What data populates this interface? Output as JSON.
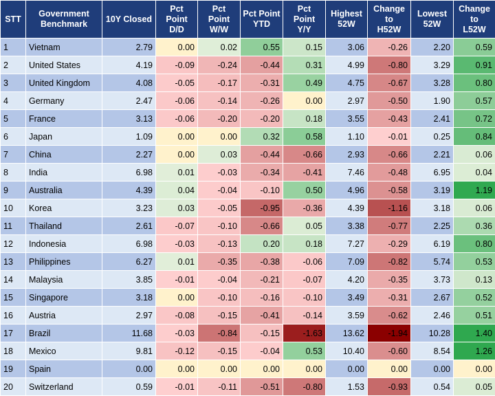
{
  "headers": {
    "stt": "STT",
    "benchmark": "Government\nBenchmark",
    "closed": "10Y Closed",
    "dd": "Pct\nPoint\nD/D",
    "ww": "Pct\nPoint\nW/W",
    "ytd": "Pct Point\nYTD",
    "yy": "Pct\nPoint\nY/Y",
    "high": "Highest\n52W",
    "ch_high": "Change\nto\nH52W",
    "low": "Lowest\n52W",
    "ch_low": "Change\nto\nL52W"
  },
  "rows": [
    {
      "stt": "1",
      "name": "Vietnam",
      "closed": "2.79",
      "dd": "0.00",
      "ww": "0.02",
      "ytd": "0.55",
      "yy": "0.15",
      "high": "3.06",
      "ch_high": "-0.26",
      "low": "2.20",
      "ch_low": "0.59"
    },
    {
      "stt": "2",
      "name": "United States",
      "closed": "4.19",
      "dd": "-0.09",
      "ww": "-0.24",
      "ytd": "-0.44",
      "yy": "0.31",
      "high": "4.99",
      "ch_high": "-0.80",
      "low": "3.29",
      "ch_low": "0.91"
    },
    {
      "stt": "3",
      "name": "United Kingdom",
      "closed": "4.08",
      "dd": "-0.05",
      "ww": "-0.17",
      "ytd": "-0.31",
      "yy": "0.49",
      "high": "4.75",
      "ch_high": "-0.67",
      "low": "3.28",
      "ch_low": "0.80"
    },
    {
      "stt": "4",
      "name": "Germany",
      "closed": "2.47",
      "dd": "-0.06",
      "ww": "-0.14",
      "ytd": "-0.26",
      "yy": "0.00",
      "high": "2.97",
      "ch_high": "-0.50",
      "low": "1.90",
      "ch_low": "0.57"
    },
    {
      "stt": "5",
      "name": "France",
      "closed": "3.13",
      "dd": "-0.06",
      "ww": "-0.20",
      "ytd": "-0.20",
      "yy": "0.18",
      "high": "3.55",
      "ch_high": "-0.43",
      "low": "2.41",
      "ch_low": "0.72"
    },
    {
      "stt": "6",
      "name": "Japan",
      "closed": "1.09",
      "dd": "0.00",
      "ww": "0.00",
      "ytd": "0.32",
      "yy": "0.58",
      "high": "1.10",
      "ch_high": "-0.01",
      "low": "0.25",
      "ch_low": "0.84"
    },
    {
      "stt": "7",
      "name": "China",
      "closed": "2.27",
      "dd": "0.00",
      "ww": "0.03",
      "ytd": "-0.44",
      "yy": "-0.66",
      "high": "2.93",
      "ch_high": "-0.66",
      "low": "2.21",
      "ch_low": "0.06"
    },
    {
      "stt": "8",
      "name": "India",
      "closed": "6.98",
      "dd": "0.01",
      "ww": "-0.03",
      "ytd": "-0.34",
      "yy": "-0.41",
      "high": "7.46",
      "ch_high": "-0.48",
      "low": "6.95",
      "ch_low": "0.04"
    },
    {
      "stt": "9",
      "name": "Australia",
      "closed": "4.39",
      "dd": "0.04",
      "ww": "-0.04",
      "ytd": "-0.10",
      "yy": "0.50",
      "high": "4.96",
      "ch_high": "-0.58",
      "low": "3.19",
      "ch_low": "1.19"
    },
    {
      "stt": "10",
      "name": "Korea",
      "closed": "3.23",
      "dd": "0.03",
      "ww": "-0.05",
      "ytd": "-0.95",
      "yy": "-0.36",
      "high": "4.39",
      "ch_high": "-1.16",
      "low": "3.18",
      "ch_low": "0.06"
    },
    {
      "stt": "11",
      "name": "Thailand",
      "closed": "2.61",
      "dd": "-0.07",
      "ww": "-0.10",
      "ytd": "-0.66",
      "yy": "0.05",
      "high": "3.38",
      "ch_high": "-0.77",
      "low": "2.25",
      "ch_low": "0.36"
    },
    {
      "stt": "12",
      "name": "Indonesia",
      "closed": "6.98",
      "dd": "-0.03",
      "ww": "-0.13",
      "ytd": "0.20",
      "yy": "0.18",
      "high": "7.27",
      "ch_high": "-0.29",
      "low": "6.19",
      "ch_low": "0.80"
    },
    {
      "stt": "13",
      "name": "Philippines",
      "closed": "6.27",
      "dd": "0.01",
      "ww": "-0.35",
      "ytd": "-0.38",
      "yy": "-0.06",
      "high": "7.09",
      "ch_high": "-0.82",
      "low": "5.74",
      "ch_low": "0.53"
    },
    {
      "stt": "14",
      "name": "Malaysia",
      "closed": "3.85",
      "dd": "-0.01",
      "ww": "-0.04",
      "ytd": "-0.21",
      "yy": "-0.07",
      "high": "4.20",
      "ch_high": "-0.35",
      "low": "3.73",
      "ch_low": "0.13"
    },
    {
      "stt": "15",
      "name": "Singapore",
      "closed": "3.18",
      "dd": "0.00",
      "ww": "-0.10",
      "ytd": "-0.16",
      "yy": "-0.10",
      "high": "3.49",
      "ch_high": "-0.31",
      "low": "2.67",
      "ch_low": "0.52"
    },
    {
      "stt": "16",
      "name": "Austria",
      "closed": "2.97",
      "dd": "-0.08",
      "ww": "-0.15",
      "ytd": "-0.41",
      "yy": "-0.14",
      "high": "3.59",
      "ch_high": "-0.62",
      "low": "2.46",
      "ch_low": "0.51"
    },
    {
      "stt": "17",
      "name": "Brazil",
      "closed": "11.68",
      "dd": "-0.03",
      "ww": "-0.84",
      "ytd": "-0.15",
      "yy": "-1.63",
      "high": "13.62",
      "ch_high": "-1.94",
      "low": "10.28",
      "ch_low": "1.40"
    },
    {
      "stt": "18",
      "name": "Mexico",
      "closed": "9.81",
      "dd": "-0.12",
      "ww": "-0.15",
      "ytd": "-0.04",
      "yy": "0.53",
      "high": "10.40",
      "ch_high": "-0.60",
      "low": "8.54",
      "ch_low": "1.26"
    },
    {
      "stt": "19",
      "name": "Spain",
      "closed": "0.00",
      "dd": "0.00",
      "ww": "0.00",
      "ytd": "0.00",
      "yy": "0.00",
      "high": "0.00",
      "ch_high": "0.00",
      "low": "0.00",
      "ch_low": "0.00"
    },
    {
      "stt": "20",
      "name": "Switzerland",
      "closed": "0.59",
      "dd": "-0.01",
      "ww": "-0.11",
      "ytd": "-0.51",
      "yy": "-0.80",
      "high": "1.53",
      "ch_high": "-0.93",
      "low": "0.54",
      "ch_low": "0.05"
    }
  ],
  "colors": {
    "header_bg": "#1f3d7a",
    "header_text": "#ffffff",
    "row_odd": "#b4c6e7",
    "row_even": "#dde8f5",
    "zero_fill": "#fff2cc",
    "green_light": "#e2efda",
    "green_dark": "#2fa84f",
    "red_light": "#ffd0d0",
    "red_dark": "#8b0000"
  }
}
